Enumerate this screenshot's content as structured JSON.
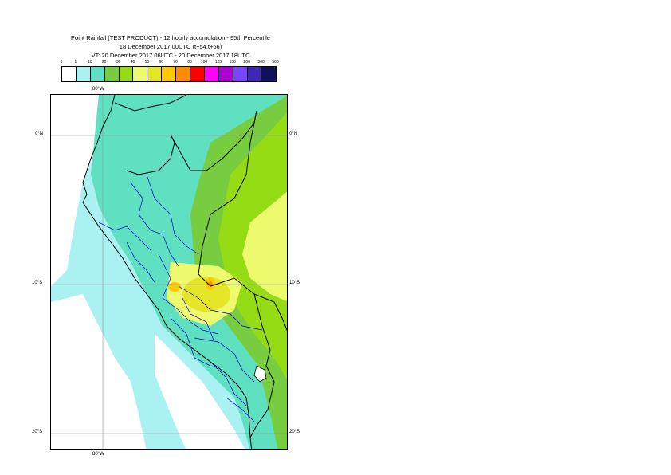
{
  "title": {
    "line1": "Point Rainfall (TEST PRODUCT) - 12 hourly accumulation - 95th Percentile",
    "line2": "18 December 2017 00UTC (t+54,t+66)",
    "line3": "VT: 20 December 2017 06UTC - 20 December 2017 18UTC"
  },
  "legend": {
    "labels": [
      "0",
      "1",
      "10",
      "20",
      "30",
      "40",
      "50",
      "60",
      "70",
      "80",
      "100",
      "125",
      "150",
      "200",
      "300",
      "500"
    ],
    "colors": [
      "#ffffff",
      "#aaf2f2",
      "#5fe0c0",
      "#78cc40",
      "#96dc14",
      "#eefa6e",
      "#e6e628",
      "#ffc800",
      "#ff8c00",
      "#ff0000",
      "#ff00ff",
      "#aa00d2",
      "#7846ff",
      "#3c28b4",
      "#0f0f5a"
    ]
  },
  "map": {
    "longitude_labels": {
      "top": "80°W",
      "bottom": "80°W"
    },
    "latitude_labels": {
      "equator": "0°N",
      "ten_south": "10°S",
      "twenty_south": "20°S"
    },
    "sea_color": "#aaf2f2",
    "border_colors": {
      "country": "#000000",
      "region": "#0000cc"
    }
  }
}
